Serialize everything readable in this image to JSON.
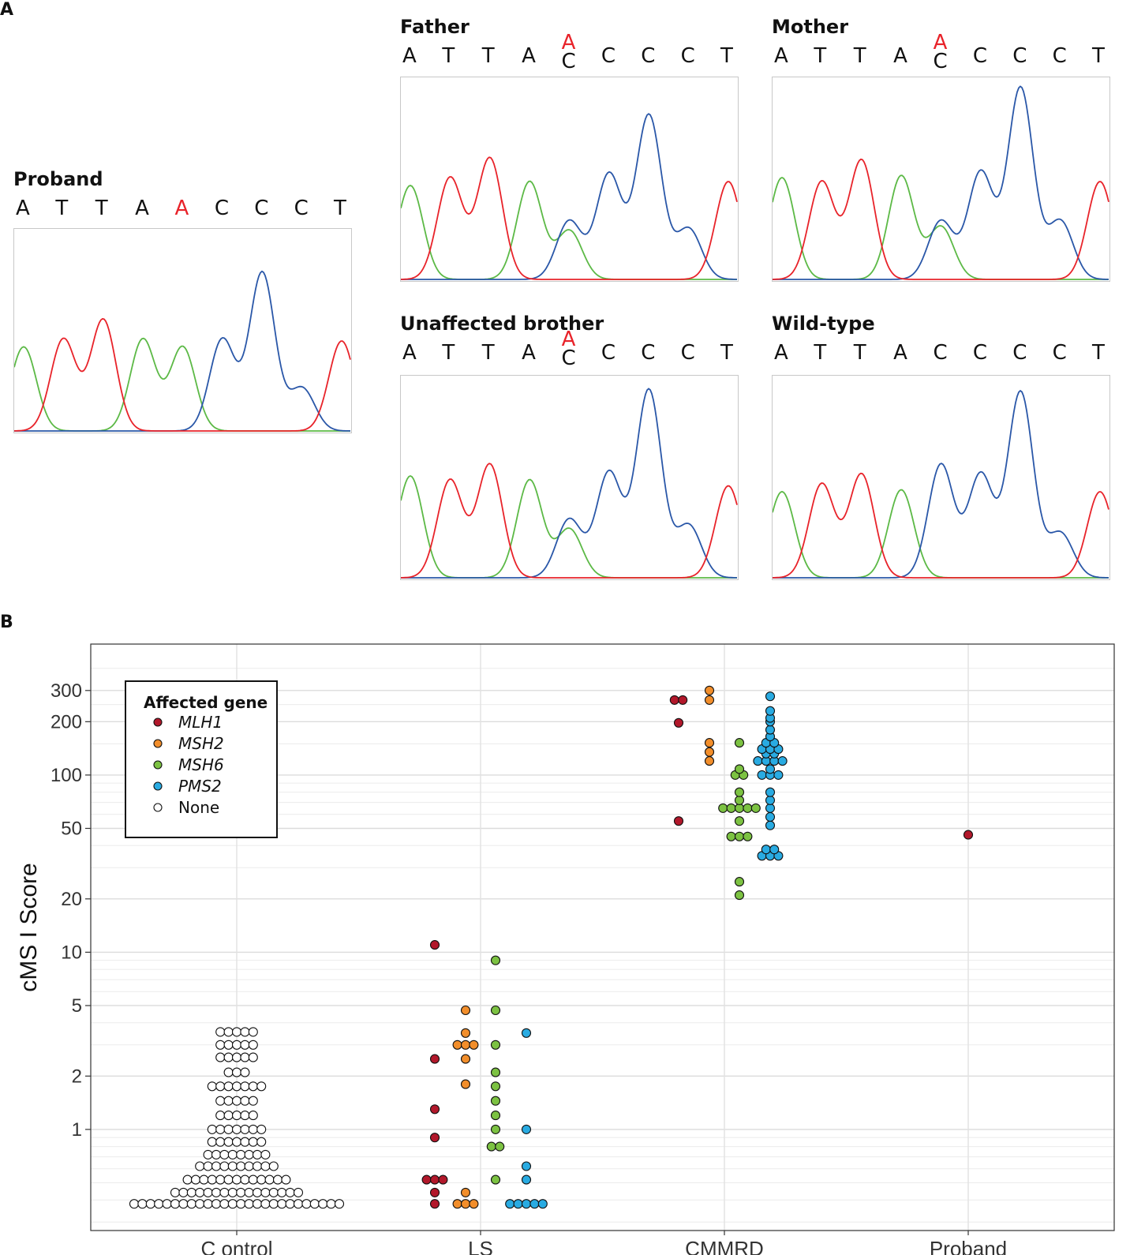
{
  "panels": {
    "a_label": "A",
    "b_label": "B"
  },
  "colors": {
    "A": "#5cb946",
    "C": "#2a57a8",
    "G": "#111111",
    "T": "#e8232a",
    "MLH1": "#b2182b",
    "MSH2": "#f28e2b",
    "MSH6": "#7cc242",
    "PMS2": "#29abe2",
    "None": "#ffffff"
  },
  "chromatograms": [
    {
      "id": "proband",
      "title": "Proband",
      "bases": [
        {
          "t": "A"
        },
        {
          "t": "T"
        },
        {
          "t": "T"
        },
        {
          "t": "A"
        },
        {
          "t": "A",
          "red": true
        },
        {
          "t": "C"
        },
        {
          "t": "C"
        },
        {
          "t": "C"
        },
        {
          "t": "T"
        }
      ],
      "peaks": [
        {
          "b": "A",
          "h": 0.43
        },
        {
          "b": "T",
          "h": 0.47
        },
        {
          "b": "T",
          "h": 0.57
        },
        {
          "b": "A",
          "h": 0.47
        },
        {
          "b": "A",
          "h": 0.43
        },
        {
          "b": "C",
          "h": 0.47
        },
        {
          "b": "C",
          "h": 0.81
        },
        {
          "b": "C",
          "h": 0.22
        },
        {
          "b": "T",
          "h": 0.46
        }
      ]
    },
    {
      "id": "father",
      "title": "Father",
      "bases": [
        {
          "t": "A"
        },
        {
          "t": "T"
        },
        {
          "t": "T"
        },
        {
          "t": "A"
        },
        {
          "het": [
            "A",
            "C"
          ]
        },
        {
          "t": "C"
        },
        {
          "t": "C"
        },
        {
          "t": "C"
        },
        {
          "t": "T"
        }
      ],
      "peaks": [
        {
          "b": "A",
          "h": 0.48
        },
        {
          "b": "T",
          "h": 0.52
        },
        {
          "b": "T",
          "h": 0.62
        },
        {
          "b": "A",
          "h": 0.5
        },
        {
          "b": "C",
          "h": 0.3,
          "s": "A",
          "sh": 0.25
        },
        {
          "b": "C",
          "h": 0.54
        },
        {
          "b": "C",
          "h": 0.84
        },
        {
          "b": "C",
          "h": 0.26
        },
        {
          "b": "T",
          "h": 0.5
        }
      ]
    },
    {
      "id": "mother",
      "title": "Mother",
      "bases": [
        {
          "t": "A"
        },
        {
          "t": "T"
        },
        {
          "t": "T"
        },
        {
          "t": "A"
        },
        {
          "het": [
            "A",
            "C"
          ]
        },
        {
          "t": "C"
        },
        {
          "t": "C"
        },
        {
          "t": "C"
        },
        {
          "t": "T"
        }
      ],
      "peaks": [
        {
          "b": "A",
          "h": 0.52
        },
        {
          "b": "T",
          "h": 0.5
        },
        {
          "b": "T",
          "h": 0.61
        },
        {
          "b": "A",
          "h": 0.53
        },
        {
          "b": "C",
          "h": 0.3,
          "s": "A",
          "sh": 0.27
        },
        {
          "b": "C",
          "h": 0.55
        },
        {
          "b": "C",
          "h": 0.98
        },
        {
          "b": "C",
          "h": 0.3
        },
        {
          "b": "T",
          "h": 0.5
        }
      ]
    },
    {
      "id": "brother",
      "title": "Unaffected brother",
      "bases": [
        {
          "t": "A"
        },
        {
          "t": "T"
        },
        {
          "t": "T"
        },
        {
          "t": "A"
        },
        {
          "het": [
            "A",
            "C"
          ]
        },
        {
          "t": "C"
        },
        {
          "t": "C"
        },
        {
          "t": "C"
        },
        {
          "t": "T"
        }
      ],
      "peaks": [
        {
          "b": "A",
          "h": 0.52
        },
        {
          "b": "T",
          "h": 0.5
        },
        {
          "b": "T",
          "h": 0.58
        },
        {
          "b": "A",
          "h": 0.5
        },
        {
          "b": "C",
          "h": 0.3,
          "s": "A",
          "sh": 0.25
        },
        {
          "b": "C",
          "h": 0.54
        },
        {
          "b": "C",
          "h": 0.96
        },
        {
          "b": "C",
          "h": 0.27
        },
        {
          "b": "T",
          "h": 0.47
        }
      ]
    },
    {
      "id": "wildtype",
      "title": "Wild-type",
      "bases": [
        {
          "t": "A"
        },
        {
          "t": "T"
        },
        {
          "t": "T"
        },
        {
          "t": "A"
        },
        {
          "t": "C"
        },
        {
          "t": "C"
        },
        {
          "t": "C"
        },
        {
          "t": "C"
        },
        {
          "t": "T"
        }
      ],
      "peaks": [
        {
          "b": "A",
          "h": 0.44
        },
        {
          "b": "T",
          "h": 0.48
        },
        {
          "b": "T",
          "h": 0.53
        },
        {
          "b": "A",
          "h": 0.45
        },
        {
          "b": "C",
          "h": 0.58
        },
        {
          "b": "C",
          "h": 0.53
        },
        {
          "b": "C",
          "h": 0.95
        },
        {
          "b": "C",
          "h": 0.23
        },
        {
          "b": "T",
          "h": 0.44
        }
      ]
    }
  ],
  "chart_data": {
    "type": "scatter",
    "subtype": "beeswarm",
    "ylabel": "cMS I Score",
    "yscale": "log",
    "ylim": [
      0.28,
      420
    ],
    "yticks": [
      1,
      2,
      5,
      10,
      20,
      50,
      100,
      200,
      300
    ],
    "ytick_labels": [
      "1",
      "2",
      "5",
      "10",
      "20",
      "50",
      "100",
      "200",
      "300"
    ],
    "categories": [
      "C ontrol",
      "LS",
      "CMMRD",
      "Proband"
    ],
    "legend": {
      "title": "Affected gene",
      "entries": [
        "MLH1",
        "MSH2",
        "MSH6",
        "PMS2",
        "None"
      ],
      "position": "top-left"
    },
    "groups": [
      {
        "category": "C ontrol",
        "sub": [
          {
            "gene": "None",
            "rows": [
              [
                0.38,
                26
              ],
              [
                0.44,
                16
              ],
              [
                0.52,
                13
              ],
              [
                0.62,
                10
              ],
              [
                0.72,
                8
              ],
              [
                0.85,
                7
              ],
              [
                1.0,
                7
              ],
              [
                1.2,
                5
              ],
              [
                1.45,
                5
              ],
              [
                1.75,
                7
              ],
              [
                2.1,
                3
              ],
              [
                2.55,
                5
              ],
              [
                3.0,
                5
              ],
              [
                3.55,
                5
              ]
            ]
          }
        ]
      },
      {
        "category": "LS",
        "sub": [
          {
            "gene": "MLH1",
            "points": [
              0.38,
              0.44,
              0.52,
              0.52,
              0.52,
              0.9,
              1.3,
              2.5,
              11
            ]
          },
          {
            "gene": "MSH2",
            "points": [
              0.38,
              0.38,
              0.38,
              0.44,
              1.8,
              2.5,
              3.0,
              3.0,
              3.0,
              3.5,
              4.7
            ]
          },
          {
            "gene": "MSH6",
            "points": [
              0.52,
              0.8,
              0.8,
              1.0,
              1.2,
              1.45,
              1.75,
              2.1,
              3.0,
              4.7,
              9
            ]
          },
          {
            "gene": "PMS2",
            "points": [
              0.38,
              0.38,
              0.38,
              0.38,
              0.38,
              0.52,
              0.62,
              1.0,
              3.5
            ]
          }
        ]
      },
      {
        "category": "CMMRD",
        "sub": [
          {
            "gene": "MLH1",
            "points": [
              55,
              197,
              265,
              265
            ]
          },
          {
            "gene": "MSH2",
            "points": [
              120,
              135,
              152,
              265,
              300
            ]
          },
          {
            "gene": "MSH6",
            "points": [
              21,
              25,
              45,
              45,
              45,
              55,
              65,
              65,
              65,
              65,
              65,
              72,
              80,
              100,
              100,
              108,
              152
            ]
          },
          {
            "gene": "PMS2",
            "points": [
              35,
              35,
              35,
              38,
              38,
              52,
              58,
              65,
              72,
              80,
              100,
              100,
              100,
              108,
              120,
              120,
              120,
              120,
              132,
              132,
              140,
              140,
              140,
              152,
              152,
              165,
              180,
              200,
              210,
              230,
              278
            ]
          }
        ]
      },
      {
        "category": "Proband",
        "sub": [
          {
            "gene": "MLH1",
            "points": [
              46
            ]
          }
        ]
      }
    ]
  }
}
